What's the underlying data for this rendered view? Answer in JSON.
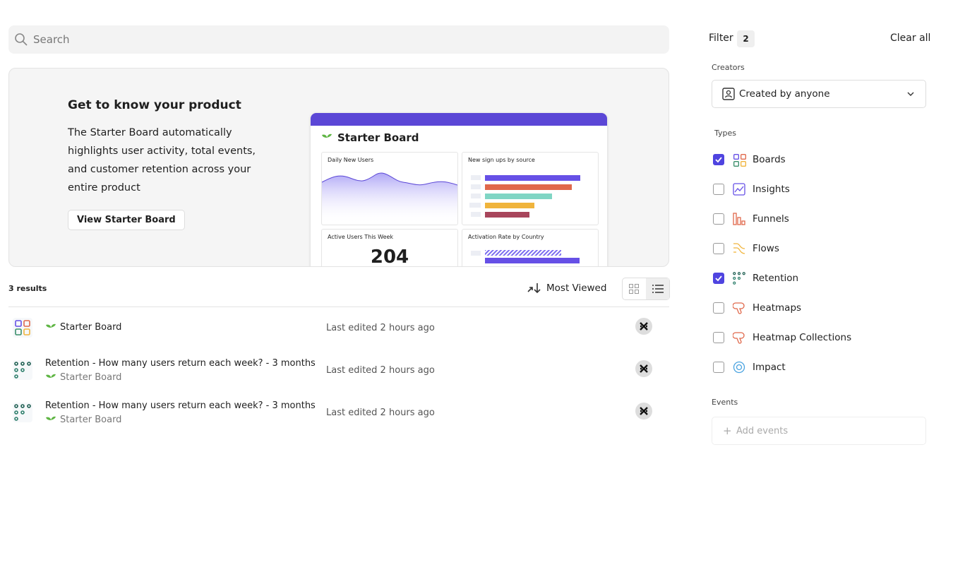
{
  "search": {
    "placeholder": "Search"
  },
  "promo": {
    "title": "Get to know your product",
    "body": "The Starter Board automatically highlights user activity, total events, and customer retention across your entire product",
    "button": "View Starter Board",
    "preview": {
      "title": "Starter Board",
      "tiles": [
        "Daily New Users",
        "New sign ups by source",
        "Active Users This Week",
        "Activation Rate by Country"
      ],
      "active_users": 204
    }
  },
  "results": {
    "count": "3 results",
    "sort": "Most Viewed",
    "rows": [
      {
        "name": "Starter Board",
        "board": null,
        "edited": "Last edited 2 hours ago",
        "kind": "board"
      },
      {
        "name": "Retention - How many users return each week? - 3 months",
        "board": "Starter Board",
        "edited": "Last edited 2 hours ago",
        "kind": "retention"
      },
      {
        "name": "Retention - How many users return each week? - 3 months",
        "board": "Starter Board",
        "edited": "Last edited 2 hours ago",
        "kind": "retention"
      }
    ]
  },
  "filter": {
    "title": "Filter",
    "count": 2,
    "clear": "Clear all",
    "creators_label": "Creators",
    "creators_value": "Created by anyone",
    "types_label": "Types",
    "types": [
      {
        "name": "Boards",
        "checked": true
      },
      {
        "name": "Insights",
        "checked": false
      },
      {
        "name": "Funnels",
        "checked": false
      },
      {
        "name": "Flows",
        "checked": false
      },
      {
        "name": "Retention",
        "checked": true
      },
      {
        "name": "Heatmaps",
        "checked": false
      },
      {
        "name": "Heatmap Collections",
        "checked": false
      },
      {
        "name": "Impact",
        "checked": false
      }
    ],
    "events_label": "Events",
    "events_placeholder": "Add events"
  }
}
